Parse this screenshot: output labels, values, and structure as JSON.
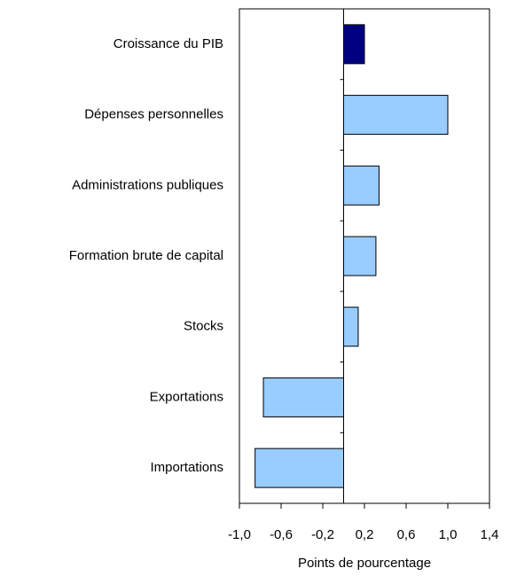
{
  "chart_data": {
    "type": "barh",
    "categories": [
      "Croissance du PIB",
      "Dépenses personnelles",
      "Administrations publiques",
      "Formation brute de capital",
      "Stocks",
      "Exportations",
      "Importations"
    ],
    "values": [
      0.2,
      1.0,
      0.34,
      0.31,
      0.14,
      -0.77,
      -0.85
    ],
    "colors": [
      "#000080",
      "#99ccff",
      "#99ccff",
      "#99ccff",
      "#99ccff",
      "#99ccff",
      "#99ccff"
    ],
    "xlabel": "Points de pourcentage",
    "xlim": [
      -1.0,
      1.4
    ],
    "xticks": [
      {
        "value": -1.0,
        "label": "-1,0"
      },
      {
        "value": -0.6,
        "label": "-0,6"
      },
      {
        "value": -0.2,
        "label": "-0,2"
      },
      {
        "value": 0.2,
        "label": "0,2"
      },
      {
        "value": 0.6,
        "label": "0,6"
      },
      {
        "value": 1.0,
        "label": "1,0"
      },
      {
        "value": 1.4,
        "label": "1,4"
      }
    ],
    "grid": false
  }
}
